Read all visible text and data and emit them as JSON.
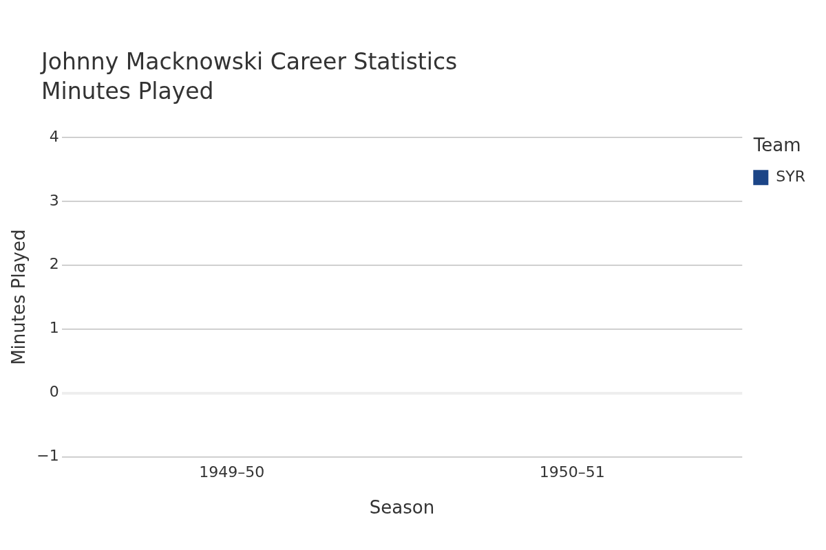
{
  "chart_data": {
    "type": "bar",
    "title": "Johnny Macknowski Career Statistics",
    "subtitle": "Minutes Played",
    "xlabel": "Season",
    "ylabel": "Minutes Played",
    "legend_title": "Team",
    "categories": [
      "1949–50",
      "1950–51"
    ],
    "series": [
      {
        "name": "SYR",
        "color": "#1c4587",
        "values": [
          0,
          0
        ]
      }
    ],
    "ylim": [
      -1,
      4
    ],
    "yticks": [
      -1,
      0,
      1,
      2,
      3,
      4
    ],
    "grid": "y",
    "legend": "top right"
  }
}
